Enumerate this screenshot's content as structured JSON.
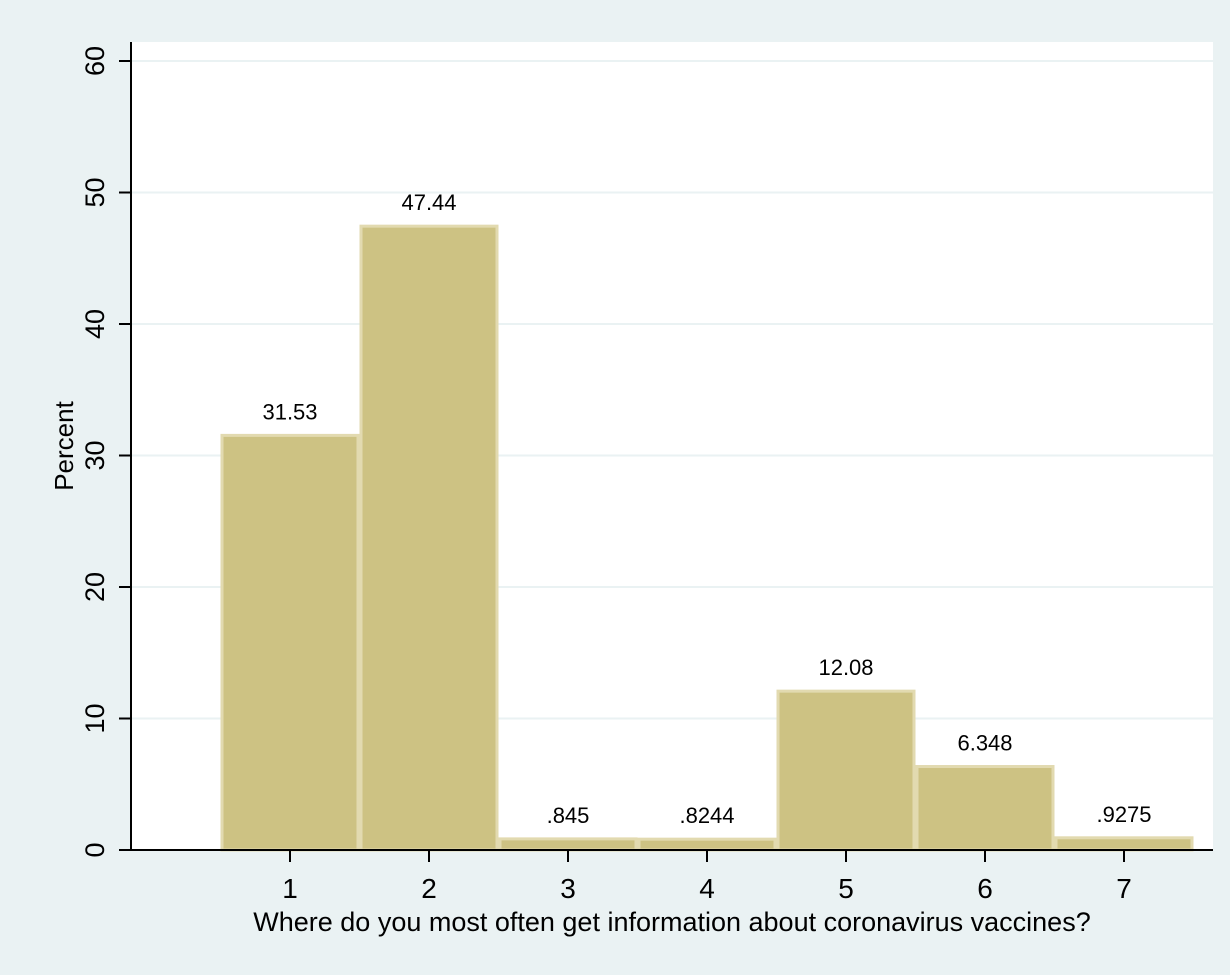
{
  "chart_data": {
    "type": "bar",
    "xlabel": "Where do you most often get information about coronavirus vaccines?",
    "ylabel": "Percent",
    "categories": [
      "1",
      "2",
      "3",
      "4",
      "5",
      "6",
      "7"
    ],
    "values": [
      31.53,
      47.44,
      0.845,
      0.8244,
      12.08,
      6.348,
      0.9275
    ],
    "value_labels": [
      "31.53",
      "47.44",
      ".845",
      ".8244",
      "12.08",
      "6.348",
      ".9275"
    ],
    "ylim": [
      0,
      60
    ],
    "yticks": [
      0,
      10,
      20,
      30,
      40,
      50,
      60
    ],
    "grid": true,
    "colors": {
      "bar_fill": "#cdc283",
      "bar_stroke": "#e2dab0",
      "plot_bg": "#ffffff",
      "outer_bg": "#eaf2f3",
      "grid": "#eaf2f3",
      "axis": "#000000"
    }
  }
}
